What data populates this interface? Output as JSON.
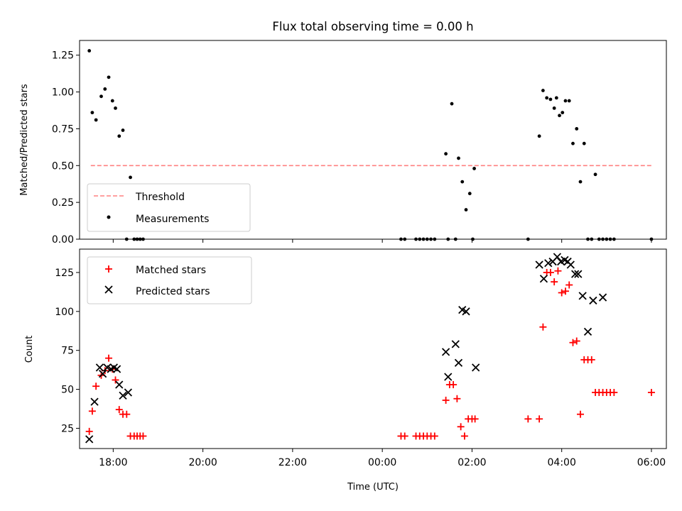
{
  "chart_data": [
    {
      "type": "scatter",
      "title": "Flux total observing time = 0.00 h",
      "xlabel": "",
      "ylabel": "Matched/Predicted stars",
      "ylim": [
        0,
        1.35
      ],
      "xlim": [
        "17:15",
        "06:20"
      ],
      "yticks": [
        "0.00",
        "0.25",
        "0.50",
        "0.75",
        "1.00",
        "1.25"
      ],
      "legend_position": "lower-left",
      "threshold": {
        "name": "Threshold",
        "value": 0.5,
        "x_from": "17:30",
        "x_to": "06:00",
        "color": "#ff8080"
      },
      "series": [
        {
          "name": "Measurements",
          "color": "#000000",
          "x": [
            "17:28",
            "17:32",
            "17:37",
            "17:44",
            "17:49",
            "17:54",
            "17:59",
            "18:03",
            "18:08",
            "18:13",
            "18:18",
            "18:23",
            "18:28",
            "18:32",
            "18:36",
            "18:40",
            "00:25",
            "00:30",
            "00:45",
            "00:50",
            "00:55",
            "01:00",
            "01:05",
            "01:10",
            "01:25",
            "01:28",
            "01:33",
            "01:38",
            "01:42",
            "01:47",
            "01:52",
            "01:57",
            "02:01",
            "02:03",
            "03:15",
            "03:30",
            "03:35",
            "03:40",
            "03:45",
            "03:50",
            "03:53",
            "03:57",
            "04:01",
            "04:05",
            "04:10",
            "04:15",
            "04:20",
            "04:25",
            "04:30",
            "04:35",
            "04:40",
            "04:45",
            "04:50",
            "04:55",
            "05:00",
            "05:05",
            "05:10",
            "06:00"
          ],
          "y": [
            1.28,
            0.86,
            0.81,
            0.97,
            1.02,
            1.1,
            0.94,
            0.89,
            0.7,
            0.74,
            0,
            0.42,
            0,
            0,
            0,
            0,
            0,
            0,
            0,
            0,
            0,
            0,
            0,
            0,
            0.58,
            0,
            0.92,
            0,
            0.55,
            0.39,
            0.2,
            0.31,
            0,
            0.48,
            0,
            0.7,
            1.01,
            0.96,
            0.95,
            0.89,
            0.96,
            0.84,
            0.86,
            0.94,
            0.94,
            0.65,
            0.75,
            0.39,
            0.65,
            0,
            0,
            0.44,
            0,
            0,
            0,
            0,
            0,
            0
          ]
        }
      ]
    },
    {
      "type": "scatter",
      "title": "",
      "xlabel": "Time (UTC)",
      "ylabel": "Count",
      "ylim": [
        12,
        140
      ],
      "xlim": [
        "17:15",
        "06:20"
      ],
      "xticks": [
        "18:00",
        "20:00",
        "22:00",
        "00:00",
        "02:00",
        "04:00",
        "06:00"
      ],
      "yticks": [
        "25",
        "50",
        "75",
        "100",
        "125"
      ],
      "legend_position": "top-left",
      "series": [
        {
          "name": "Matched stars",
          "marker": "plus",
          "color": "#ff0000",
          "x": [
            "17:28",
            "17:32",
            "17:37",
            "17:44",
            "17:49",
            "17:54",
            "17:59",
            "18:03",
            "18:08",
            "18:13",
            "18:18",
            "18:23",
            "18:28",
            "18:32",
            "18:36",
            "18:40",
            "00:25",
            "00:30",
            "00:45",
            "00:50",
            "00:55",
            "01:00",
            "01:05",
            "01:10",
            "01:25",
            "01:30",
            "01:35",
            "01:40",
            "01:45",
            "01:50",
            "01:55",
            "02:00",
            "02:04",
            "03:15",
            "03:30",
            "03:35",
            "03:40",
            "03:45",
            "03:50",
            "03:55",
            "04:00",
            "04:05",
            "04:10",
            "04:15",
            "04:20",
            "04:25",
            "04:30",
            "04:35",
            "04:40",
            "04:45",
            "04:50",
            "04:55",
            "05:00",
            "05:05",
            "05:10",
            "06:00"
          ],
          "y": [
            23,
            36,
            52,
            59,
            62,
            70,
            63,
            56,
            37,
            34,
            34,
            20,
            20,
            20,
            20,
            20,
            20,
            20,
            20,
            20,
            20,
            20,
            20,
            20,
            43,
            53,
            53,
            44,
            26,
            20,
            31,
            31,
            31,
            31,
            31,
            90,
            125,
            125,
            119,
            126,
            112,
            113,
            117,
            80,
            81,
            34,
            69,
            69,
            69,
            48,
            48,
            48,
            48,
            48,
            48,
            48
          ]
        },
        {
          "name": "Predicted stars",
          "marker": "x",
          "color": "#000000",
          "x": [
            "17:28",
            "17:35",
            "17:42",
            "17:46",
            "17:52",
            "17:57",
            "18:01",
            "18:05",
            "18:08",
            "18:13",
            "18:20",
            "01:25",
            "01:28",
            "01:38",
            "01:42",
            "01:47",
            "01:52",
            "02:05",
            "03:30",
            "03:36",
            "03:42",
            "03:48",
            "03:54",
            "03:59",
            "04:04",
            "04:08",
            "04:12",
            "04:18",
            "04:22",
            "04:28",
            "04:35",
            "04:42",
            "04:55"
          ],
          "y": [
            18,
            42,
            64,
            60,
            64,
            63,
            64,
            63,
            53,
            46,
            48,
            74,
            58,
            79,
            67,
            101,
            100,
            64,
            130,
            121,
            131,
            132,
            135,
            132,
            133,
            132,
            130,
            124,
            124,
            110,
            87,
            107,
            109
          ]
        }
      ]
    }
  ]
}
